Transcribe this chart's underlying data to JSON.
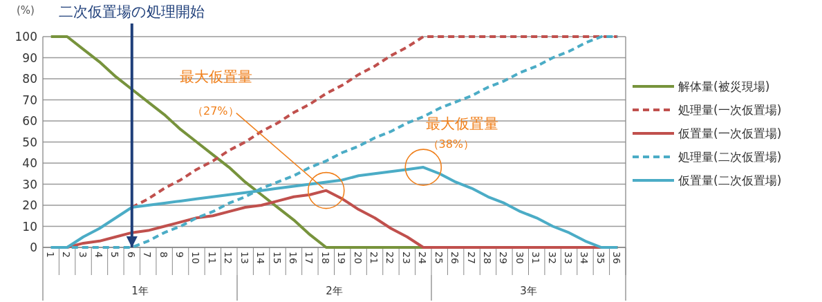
{
  "chart_data": {
    "type": "line",
    "ylabel": "(%)",
    "categories": [
      "1",
      "2",
      "3",
      "4",
      "5",
      "6",
      "7",
      "8",
      "9",
      "10",
      "11",
      "12",
      "13",
      "14",
      "15",
      "16",
      "17",
      "18",
      "19",
      "20",
      "21",
      "22",
      "23",
      "24",
      "25",
      "26",
      "27",
      "28",
      "29",
      "30",
      "31",
      "32",
      "33",
      "34",
      "35",
      "36"
    ],
    "ylim": [
      0,
      100
    ],
    "yticks": [
      0,
      10,
      20,
      30,
      40,
      50,
      60,
      70,
      80,
      90,
      100
    ],
    "grid": "y",
    "legend": "right",
    "marker": "none",
    "series": [
      {
        "name": "解体量(被災現場)",
        "color": "#77933c",
        "line_style": "solid",
        "values": [
          100,
          100,
          94,
          88,
          81,
          75,
          69,
          63,
          56,
          50,
          44,
          38,
          31,
          25,
          19,
          13,
          6,
          0,
          0,
          0,
          0,
          0,
          0,
          0,
          0,
          0,
          0,
          0,
          0,
          0,
          0,
          0,
          0,
          0,
          0,
          0
        ]
      },
      {
        "name": "処理量(一次仮置場)",
        "color": "#c0504d",
        "line_style": "dashed",
        "values": [
          null,
          null,
          null,
          null,
          null,
          19,
          23,
          28,
          32,
          37,
          41,
          46,
          50,
          55,
          59,
          64,
          68,
          73,
          77,
          82,
          86,
          91,
          95,
          100,
          100,
          100,
          100,
          100,
          100,
          100,
          100,
          100,
          100,
          100,
          100,
          100
        ]
      },
      {
        "name": "仮置量(一次仮置場)",
        "color": "#c0504d",
        "line_style": "solid",
        "values": [
          null,
          0,
          2,
          3,
          5,
          7,
          8,
          10,
          12,
          14,
          15,
          17,
          19,
          20,
          22,
          24,
          25,
          27,
          23,
          18,
          14,
          9,
          5,
          0,
          0,
          0,
          0,
          0,
          0,
          0,
          0,
          0,
          0,
          0,
          0,
          0
        ]
      },
      {
        "name": "処理量(二次仮置場)",
        "color": "#4bacc6",
        "line_style": "dashed",
        "values": [
          0,
          0,
          0,
          0,
          0,
          0,
          3,
          7,
          10,
          14,
          17,
          21,
          24,
          28,
          31,
          34,
          38,
          41,
          45,
          48,
          52,
          55,
          59,
          62,
          66,
          69,
          72,
          76,
          79,
          83,
          86,
          90,
          93,
          97,
          100,
          100
        ]
      },
      {
        "name": "仮置量(二次仮置場)",
        "color": "#4bacc6",
        "line_style": "solid",
        "values": [
          0,
          0,
          5,
          9,
          14,
          19,
          20,
          21,
          22,
          23,
          24,
          25,
          26,
          27,
          28,
          29,
          30,
          31,
          32,
          34,
          35,
          36,
          37,
          38,
          35,
          31,
          28,
          24,
          21,
          17,
          14,
          10,
          7,
          3,
          0,
          0
        ]
      }
    ],
    "ref_lines": [
      {
        "axis": "x",
        "value": "6",
        "label": "二次仮置場の処理開始",
        "color": "#1f3f7a"
      }
    ],
    "annotations": [
      "最大仮置量",
      {
        "text": "（27%）",
        "x": "18",
        "y": 27
      },
      "最大仮置量",
      {
        "text": "（38%）",
        "x": "24",
        "y": 38
      },
      "1年",
      "2年",
      "3年"
    ]
  }
}
